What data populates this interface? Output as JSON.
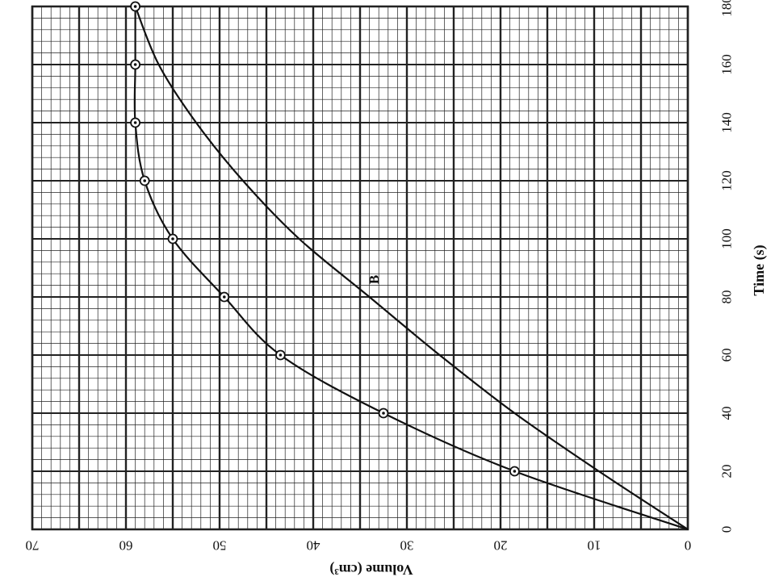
{
  "chart_data": {
    "type": "line",
    "orientation": "rotated 90 degrees (time axis runs up the right edge, volume axis along the bottom, increasing leftward)",
    "title": "",
    "xlabel": "Time (s)",
    "ylabel": "Volume (cm³)",
    "xlim": [
      0,
      180
    ],
    "ylim": [
      0,
      70
    ],
    "x_ticks": [
      "0",
      "20",
      "40",
      "60",
      "80",
      "100",
      "120",
      "140",
      "160",
      "180"
    ],
    "y_ticks": [
      "0",
      "10",
      "20",
      "30",
      "40",
      "50",
      "60",
      "70"
    ],
    "grid": true,
    "series": [
      {
        "name": "",
        "markers": true,
        "x": [
          0,
          20,
          40,
          60,
          80,
          100,
          120,
          140,
          160,
          180
        ],
        "y": [
          0,
          18.5,
          32.5,
          43.5,
          49.5,
          55,
          58,
          59,
          59,
          59
        ]
      },
      {
        "name": "B",
        "markers": false,
        "x": [
          0,
          20,
          40,
          60,
          80,
          100,
          120,
          140,
          160,
          180
        ],
        "y": [
          0,
          9.5,
          18.5,
          26.5,
          34,
          41.5,
          47.5,
          52.5,
          56.5,
          59
        ]
      }
    ]
  }
}
